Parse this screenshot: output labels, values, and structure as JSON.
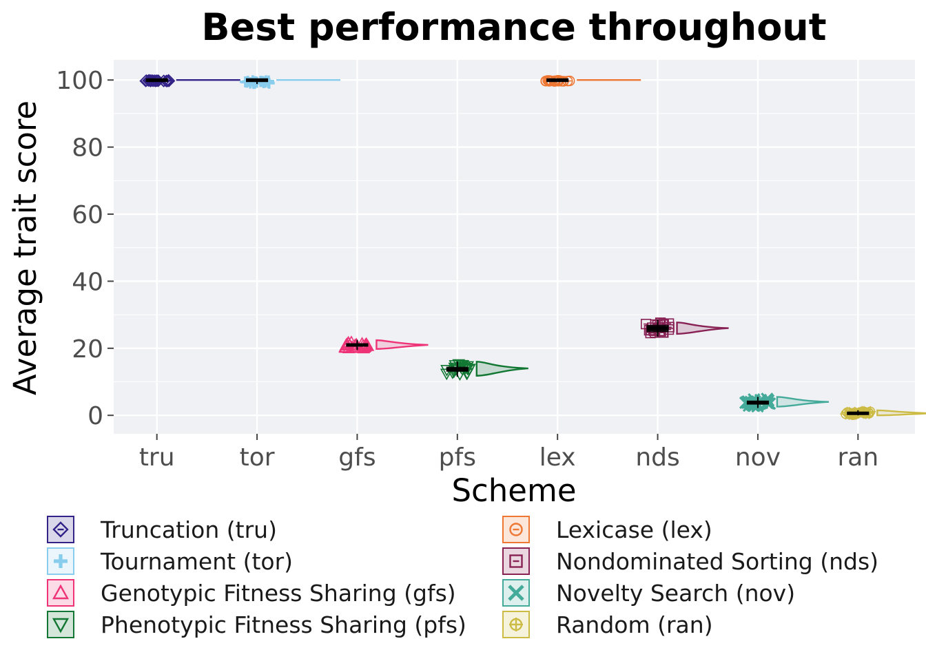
{
  "chart_data": {
    "type": "raincloud",
    "title": "Best performance throughout",
    "xlabel": "Scheme",
    "ylabel": "Average trait score",
    "categories": [
      "tru",
      "tor",
      "gfs",
      "pfs",
      "lex",
      "nds",
      "nov",
      "ran"
    ],
    "ylim": [
      -5.5,
      106
    ],
    "yticks": [
      0,
      20,
      40,
      60,
      80,
      100
    ],
    "grid": true,
    "legend_position": "bottom",
    "series": [
      {
        "key": "tru",
        "name": "Truncation (tru)",
        "color": "#332288",
        "shape": "diamond",
        "median": 100,
        "q1": 100,
        "q3": 100,
        "min": 99.6,
        "max": 100,
        "density_peak": 100,
        "density_range": [
          99.7,
          100
        ]
      },
      {
        "key": "tor",
        "name": "Tournament (tor)",
        "color": "#88ccee",
        "shape": "plus",
        "median": 100,
        "q1": 99.7,
        "q3": 100,
        "min": 98.8,
        "max": 100,
        "density_peak": 100,
        "density_range": [
          99.5,
          100
        ]
      },
      {
        "key": "gfs",
        "name": "Genotypic Fitness Sharing (gfs)",
        "color": "#ee3377",
        "shape": "triangle-up",
        "median": 21,
        "q1": 20.5,
        "q3": 21.5,
        "min": 19.5,
        "max": 22.5,
        "density_peak": 21,
        "density_range": [
          19.8,
          22.4
        ]
      },
      {
        "key": "pfs",
        "name": "Phenotypic Fitness Sharing (pfs)",
        "color": "#117733",
        "shape": "triangle-down",
        "median": 13.7,
        "q1": 13,
        "q3": 14.5,
        "min": 11.5,
        "max": 16,
        "density_peak": 14,
        "density_range": [
          11.8,
          16
        ]
      },
      {
        "key": "lex",
        "name": "Lexicase (lex)",
        "color": "#ee7733",
        "shape": "circle",
        "median": 100,
        "q1": 100,
        "q3": 100,
        "min": 99.5,
        "max": 100,
        "density_peak": 100,
        "density_range": [
          99.7,
          100
        ]
      },
      {
        "key": "nds",
        "name": "Nondominated Sorting (nds)",
        "color": "#882255",
        "shape": "square",
        "median": 26,
        "q1": 24.8,
        "q3": 27,
        "min": 23.5,
        "max": 28.5,
        "density_peak": 26,
        "density_range": [
          24.3,
          27.7
        ]
      },
      {
        "key": "nov",
        "name": "Novelty Search (nov)",
        "color": "#44aa99",
        "shape": "x",
        "median": 3.8,
        "q1": 3.2,
        "q3": 4.4,
        "min": 2.2,
        "max": 5.5,
        "density_peak": 4,
        "density_range": [
          2.6,
          5.5
        ]
      },
      {
        "key": "ran",
        "name": "Random (ran)",
        "color": "#ccbb44",
        "shape": "circle-plus",
        "median": 0.6,
        "q1": 0.3,
        "q3": 0.9,
        "min": 0,
        "max": 1.5,
        "density_peak": 0.6,
        "density_range": [
          0,
          1.5
        ]
      }
    ]
  }
}
